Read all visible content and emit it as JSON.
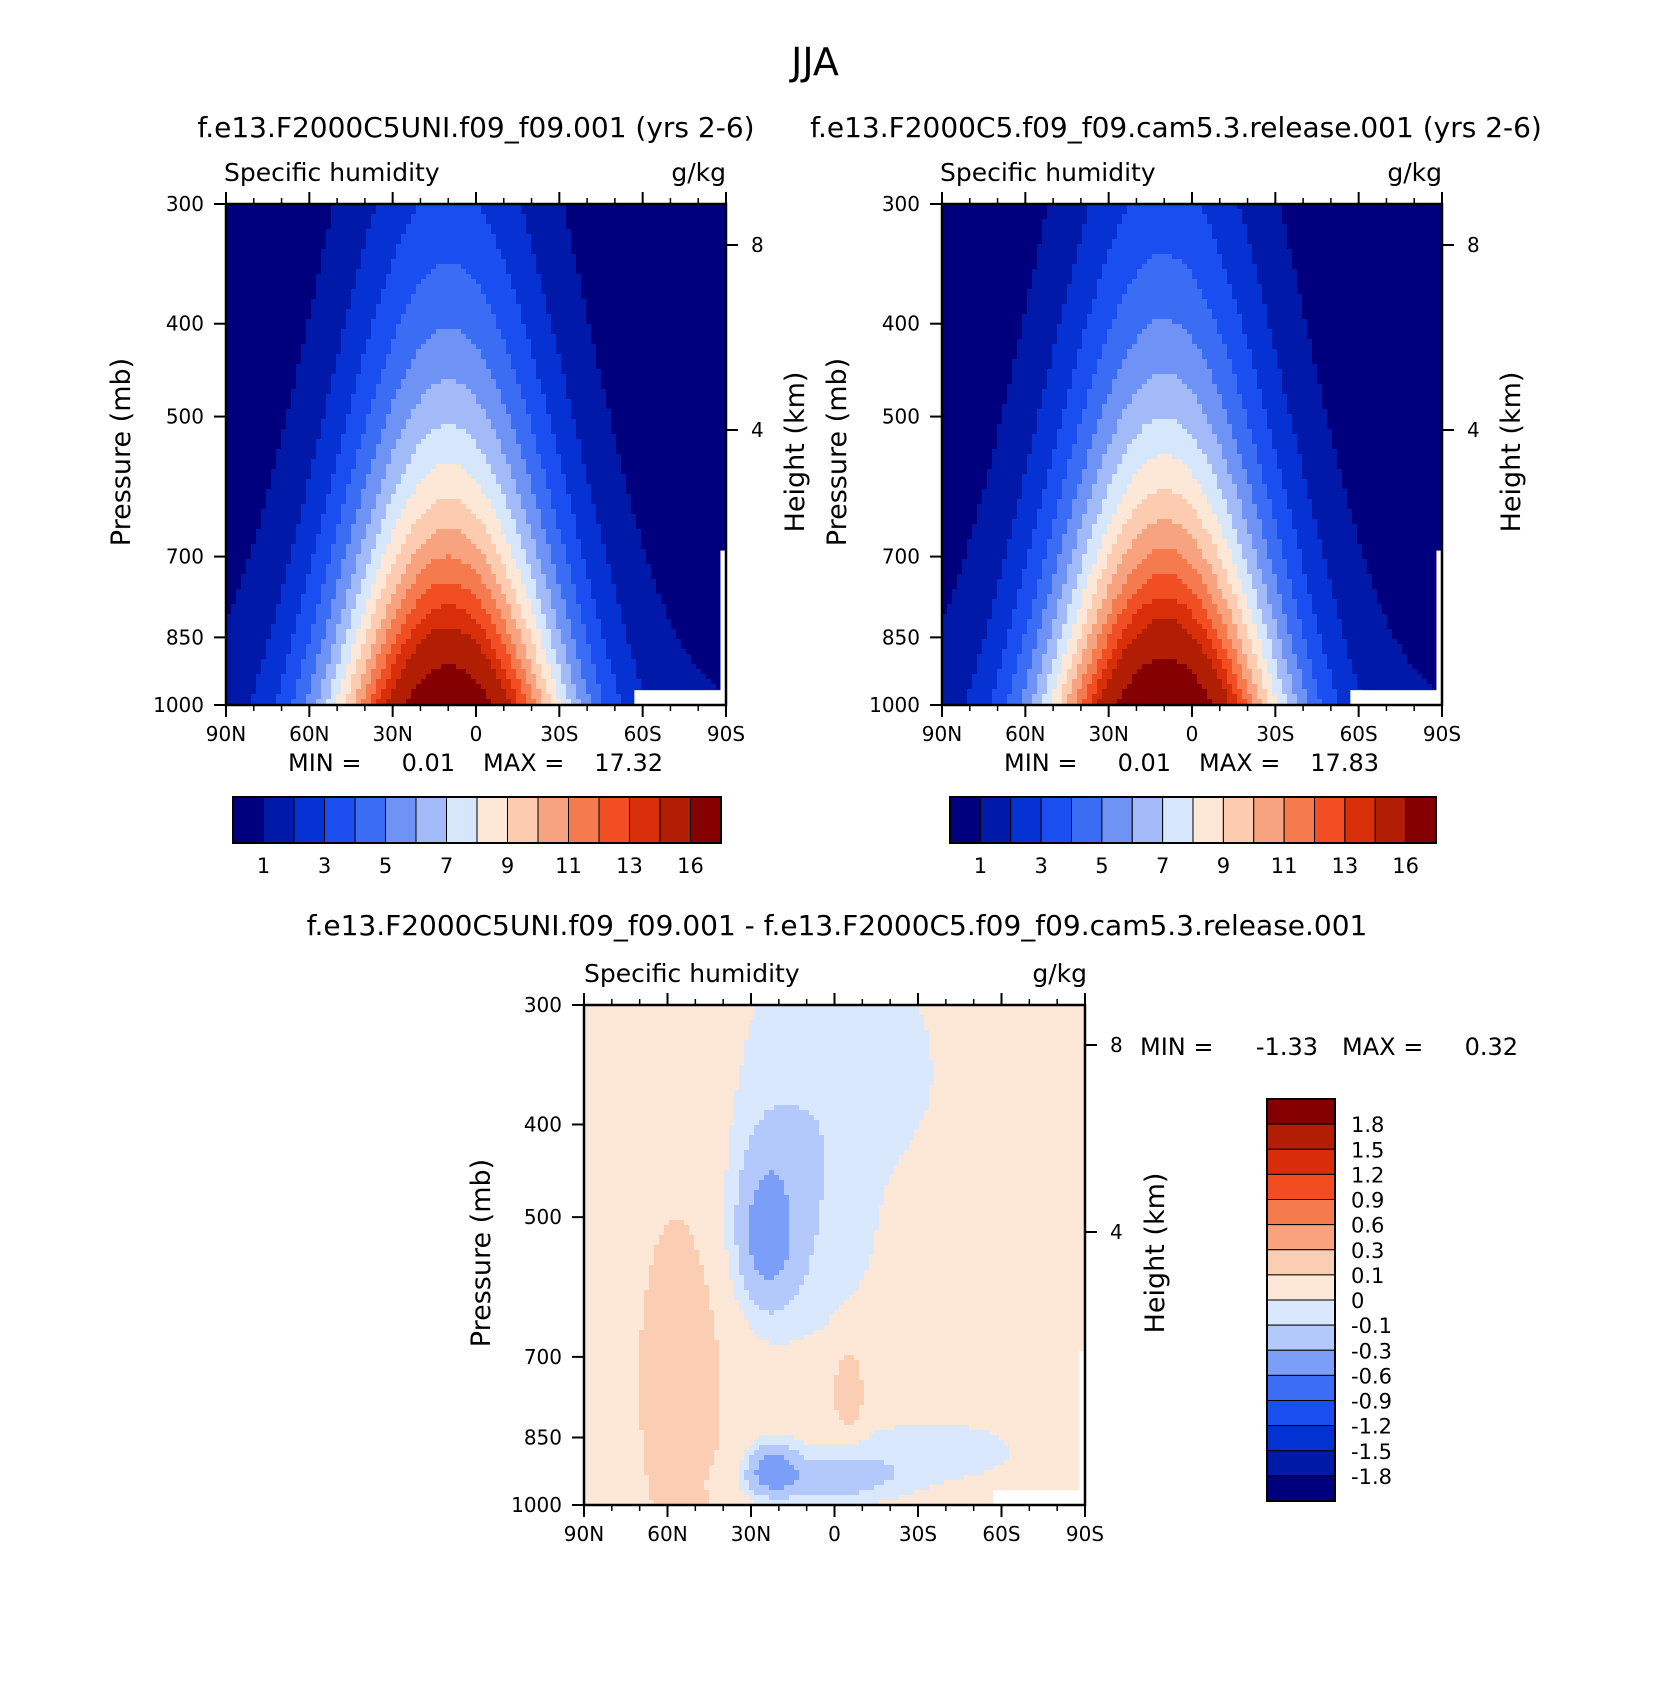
{
  "figure_title": "JJA",
  "colors": {
    "humidity_palette": [
      "#00007e",
      "#0019a8",
      "#0632d4",
      "#1a4ef0",
      "#3a6cf4",
      "#6e93f5",
      "#a3baf8",
      "#d6e6fb",
      "#fde7d6",
      "#fccbb0",
      "#f8a380",
      "#f57a4e",
      "#f24e24",
      "#d92e0a",
      "#b21e04",
      "#850000"
    ],
    "diff_palette": [
      "#00007e",
      "#001aa8",
      "#0332d2",
      "#1a4ef0",
      "#3b6ef5",
      "#7b9ff8",
      "#b3c9fb",
      "#d9e8fc",
      "#fde7d6",
      "#fbcdb2",
      "#f8a27e",
      "#f57a4c",
      "#f24d20",
      "#d92d0a",
      "#b21d04",
      "#850000"
    ]
  },
  "chart_data": [
    {
      "type": "heatmap",
      "title": "f.e13.F2000C5UNI.f09_f09.001 (yrs 2-6)",
      "left_label": "Specific humidity",
      "right_label": "g/kg",
      "xlabel": "",
      "ylabel": "Pressure (mb)",
      "y2label": "Height (km)",
      "x_ticks": [
        "90N",
        "60N",
        "30N",
        "0",
        "30S",
        "60S",
        "90S"
      ],
      "x_range": [
        90,
        -90
      ],
      "y_ticks": [
        300,
        400,
        500,
        700,
        850,
        1000
      ],
      "y_range": [
        300,
        1000
      ],
      "y_scale": "log",
      "height_ticks": [
        4,
        8
      ],
      "min_label": "MIN =",
      "min_value": "0.01",
      "max_label": "MAX =",
      "max_value": "17.32",
      "max_value_num": 17.32,
      "peak_lat": 10,
      "colorbar_labels": [
        "1",
        "3",
        "5",
        "7",
        "9",
        "11",
        "13",
        "16"
      ]
    },
    {
      "type": "heatmap",
      "title": "f.e13.F2000C5.f09_f09.cam5.3.release.001 (yrs 2-6)",
      "left_label": "Specific humidity",
      "right_label": "g/kg",
      "xlabel": "",
      "ylabel": "Pressure (mb)",
      "y2label": "Height (km)",
      "x_ticks": [
        "90N",
        "60N",
        "30N",
        "0",
        "30S",
        "60S",
        "90S"
      ],
      "x_range": [
        90,
        -90
      ],
      "y_ticks": [
        300,
        400,
        500,
        700,
        850,
        1000
      ],
      "y_range": [
        300,
        1000
      ],
      "y_scale": "log",
      "height_ticks": [
        4,
        8
      ],
      "min_label": "MIN =",
      "min_value": "0.01",
      "max_label": "MAX =",
      "max_value": "17.83",
      "max_value_num": 17.83,
      "peak_lat": 10,
      "colorbar_labels": [
        "1",
        "3",
        "5",
        "7",
        "9",
        "11",
        "13",
        "16"
      ]
    },
    {
      "type": "heatmap",
      "title": "f.e13.F2000C5UNI.f09_f09.001 - f.e13.F2000C5.f09_f09.cam5.3.release.001",
      "left_label": "Specific humidity",
      "right_label": "g/kg",
      "xlabel": "",
      "ylabel": "Pressure (mb)",
      "y2label": "Height (km)",
      "x_ticks": [
        "90N",
        "60N",
        "30N",
        "0",
        "30S",
        "60S",
        "90S"
      ],
      "x_range": [
        90,
        -90
      ],
      "y_ticks": [
        300,
        400,
        500,
        700,
        850,
        1000
      ],
      "y_range": [
        300,
        1000
      ],
      "y_scale": "log",
      "height_ticks": [
        4,
        8
      ],
      "min_label": "MIN =",
      "min_value": "-1.33",
      "max_label": "MAX =",
      "max_value": "0.32",
      "colorbar_labels": [
        "1.8",
        "1.5",
        "1.2",
        "0.9",
        "0.6",
        "0.3",
        "0.1",
        "0",
        "-0.1",
        "-0.3",
        "-0.6",
        "-0.9",
        "-1.2",
        "-1.5",
        "-1.8"
      ]
    }
  ]
}
